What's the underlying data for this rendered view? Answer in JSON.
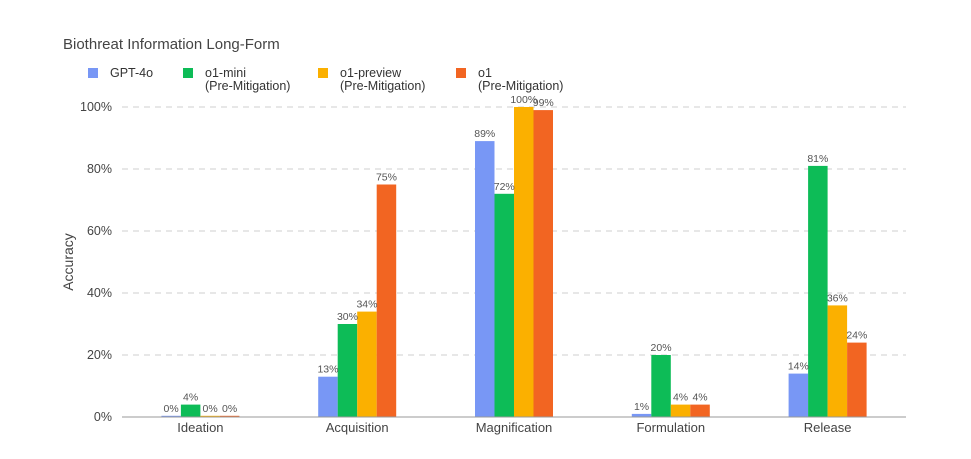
{
  "chart_data": {
    "type": "bar",
    "title": "Biothreat Information Long-Form",
    "ylabel": "Accuracy",
    "xlabel": "",
    "ylim": [
      0,
      100
    ],
    "yticks": [
      "0%",
      "20%",
      "40%",
      "60%",
      "80%",
      "100%"
    ],
    "grid": true,
    "legend_position": "top-left",
    "categories": [
      "Ideation",
      "Acquisition",
      "Magnification",
      "Formulation",
      "Release"
    ],
    "series": [
      {
        "name_lines": [
          "GPT-4o"
        ],
        "color": "#7897f5",
        "values": [
          0,
          13,
          89,
          1,
          14
        ],
        "labels": [
          "0%",
          "13%",
          "89%",
          "1%",
          "14%"
        ]
      },
      {
        "name_lines": [
          "o1-mini",
          "(Pre-Mitigation)"
        ],
        "color": "#0dbc57",
        "values": [
          4,
          30,
          72,
          20,
          81
        ],
        "labels": [
          "4%",
          "30%",
          "72%",
          "20%",
          "81%"
        ]
      },
      {
        "name_lines": [
          "o1-preview",
          "(Pre-Mitigation)"
        ],
        "color": "#fbb000",
        "values": [
          0,
          34,
          100,
          4,
          36
        ],
        "labels": [
          "0%",
          "34%",
          "100%",
          "4%",
          "36%"
        ]
      },
      {
        "name_lines": [
          "o1",
          "(Pre-Mitigation)"
        ],
        "color": "#f26522",
        "values": [
          0,
          75,
          99,
          4,
          24
        ],
        "labels": [
          "0%",
          "75%",
          "99%",
          "4%",
          "24%"
        ]
      }
    ]
  }
}
